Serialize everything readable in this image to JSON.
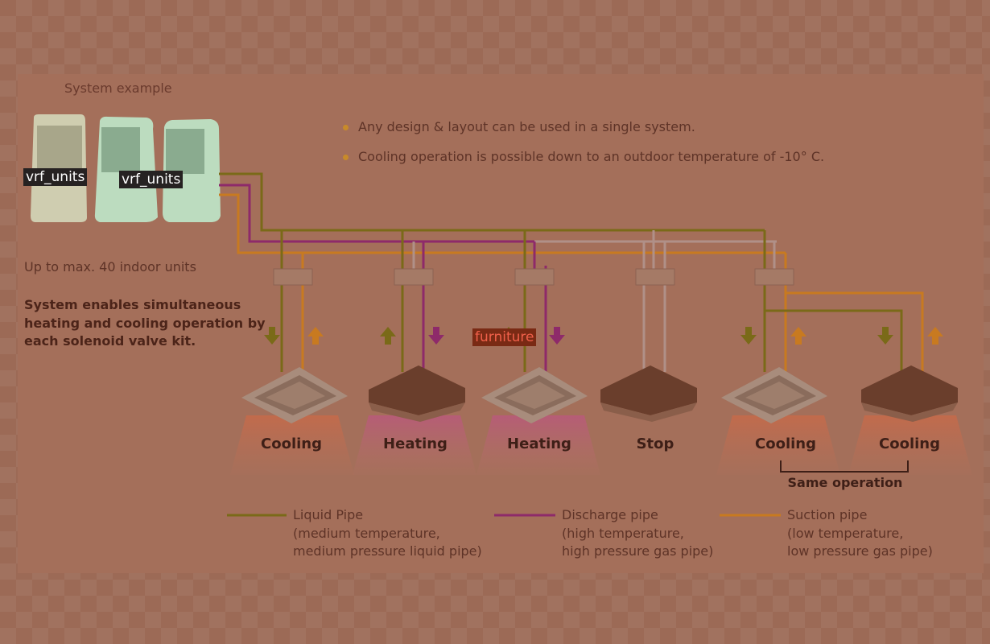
{
  "system_title": "System example",
  "bullets": [
    "Any design & layout can be used in a single system.",
    "Cooling operation is possible down to an outdoor temperature of -10° C."
  ],
  "max_units": "Up to max. 40 indoor units",
  "description": "System enables simultaneous heating and cooling operation by each solenoid valve kit.",
  "indoor_units": [
    {
      "mode": "Cooling"
    },
    {
      "mode": "Heating"
    },
    {
      "mode": "Heating"
    },
    {
      "mode": "Stop"
    },
    {
      "mode": "Cooling"
    },
    {
      "mode": "Cooling"
    }
  ],
  "same_operation": "Same operation",
  "legend": [
    {
      "name": "Liquid Pipe",
      "line1": "(medium temperature,",
      "line2": "medium pressure liquid pipe)",
      "color": "#7a6a18"
    },
    {
      "name": "Discharge pipe",
      "line1": "(high temperature,",
      "line2": "high pressure gas pipe)",
      "color": "#8e2a6a"
    },
    {
      "name": "Suction pipe",
      "line1": "(low temperature,",
      "line2": "low pressure gas pipe)",
      "color": "#c87a20"
    }
  ],
  "labels": {
    "outdoor_1": "vrf_units",
    "outdoor_2": "vrf_units",
    "furniture": "furniture"
  }
}
